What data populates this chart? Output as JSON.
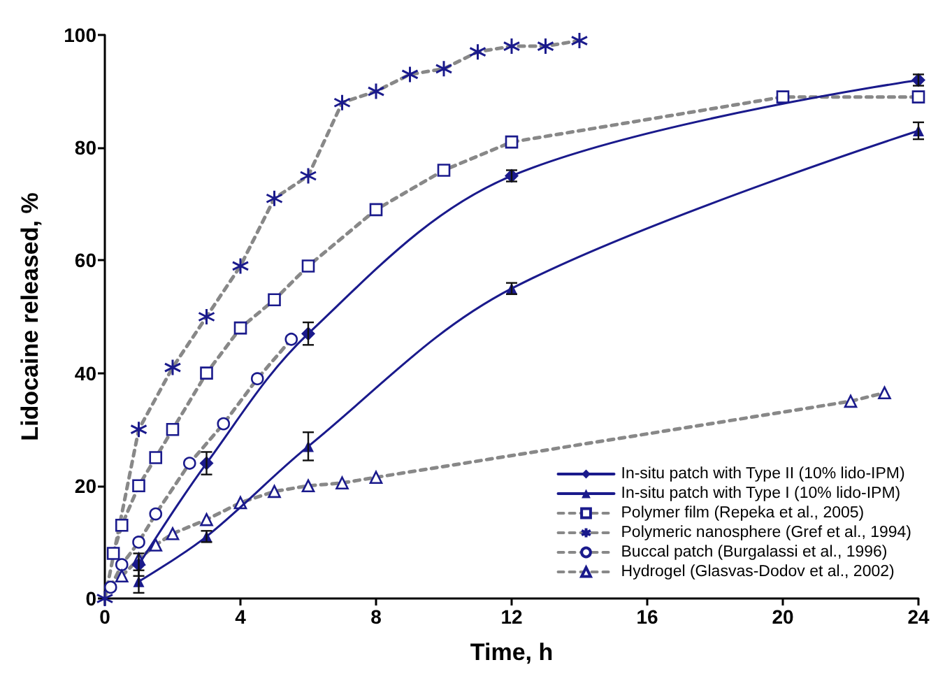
{
  "chart_data": {
    "type": "line",
    "xlabel": "Time, h",
    "ylabel": "Lidocaine released, %",
    "xlim": [
      0,
      24
    ],
    "xticks": [
      0,
      4,
      8,
      12,
      16,
      20,
      24
    ],
    "ylim": [
      0,
      100
    ],
    "yticks": [
      0,
      20,
      40,
      60,
      80,
      100
    ],
    "grid": false,
    "legend": "bottom right",
    "series": [
      {
        "name": "In-situ patch with Type II (10% lido-IPM)",
        "color": "#1a1a8c",
        "marker": "diamond",
        "line_style": "solid",
        "x": [
          1,
          3,
          6,
          12,
          24
        ],
        "values": [
          6,
          24,
          47,
          75,
          92
        ],
        "errors": [
          2,
          2,
          2,
          1,
          1
        ]
      },
      {
        "name": "In-situ patch with Type I (10% lido-IPM)",
        "color": "#1a1a8c",
        "marker": "triangle",
        "line_style": "solid",
        "x": [
          1,
          3,
          6,
          12,
          24
        ],
        "values": [
          3,
          11,
          27,
          55,
          83
        ],
        "errors": [
          2,
          1,
          2.5,
          1,
          1.5
        ]
      },
      {
        "name": "Polymer film (Repeka et al., 2005)",
        "color": "#1a1a8c",
        "marker": "square",
        "line_style": "dashed",
        "x": [
          0.25,
          0.5,
          1,
          1.5,
          2,
          3,
          4,
          5,
          6,
          8,
          10,
          12,
          20,
          24
        ],
        "values": [
          8,
          13,
          20,
          25,
          30,
          40,
          48,
          53,
          59,
          69,
          76,
          81,
          89,
          89
        ]
      },
      {
        "name": "Polymeric nanosphere (Gref et al., 1994)",
        "color": "#1a1a8c",
        "marker": "cross",
        "line_style": "dashed",
        "x": [
          0,
          1,
          2,
          3,
          4,
          5,
          6,
          7,
          8,
          9,
          10,
          11,
          12,
          13,
          14
        ],
        "values": [
          0,
          30,
          41,
          50,
          59,
          71,
          75,
          88,
          90,
          93,
          94,
          97,
          98,
          98,
          99
        ]
      },
      {
        "name": "Buccal patch (Burgalassi et al., 1996)",
        "color": "#1a1a8c",
        "marker": "circle",
        "line_style": "dashed",
        "x": [
          0.17,
          0.5,
          1,
          1.5,
          2.5,
          3.5,
          4.5,
          5.5
        ],
        "values": [
          2,
          6,
          10,
          15,
          24,
          31,
          39,
          46
        ]
      },
      {
        "name": "Hydrogel (Glasvas-Dodov et al., 2002)",
        "color": "#1a1a8c",
        "marker": "triangle",
        "line_style": "dashed",
        "x": [
          0.5,
          1,
          1.5,
          2,
          3,
          4,
          5,
          6,
          7,
          8,
          22,
          23
        ],
        "values": [
          4,
          7,
          9.5,
          11.5,
          14,
          17,
          19,
          20,
          20.5,
          21.5,
          35,
          36.5
        ]
      }
    ]
  }
}
